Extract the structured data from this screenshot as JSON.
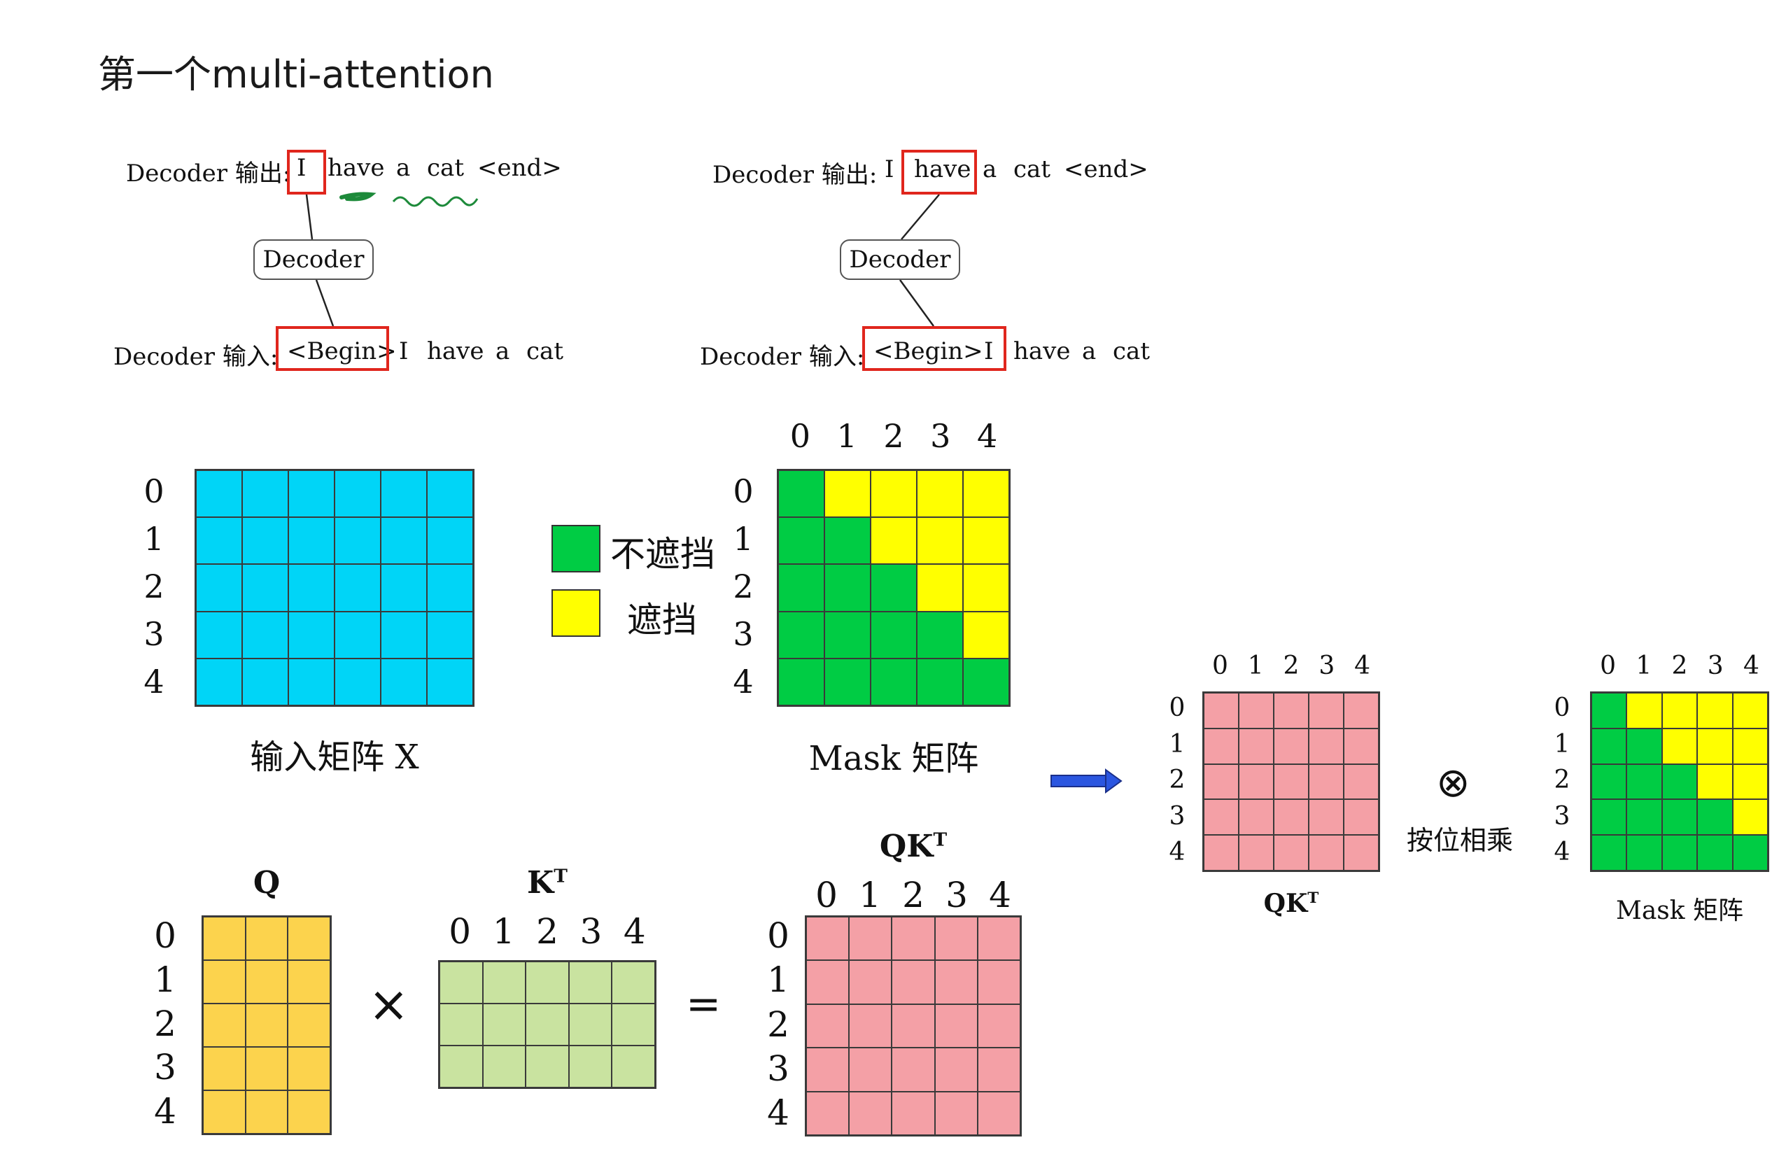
{
  "title": "第一个multi-attention",
  "decoder_left": {
    "output_label": "Decoder 输出:",
    "output_tokens": [
      "I",
      "have",
      "a",
      "cat",
      "<end>"
    ],
    "box_label": "Decoder",
    "input_label": "Decoder 输入:",
    "input_tokens": [
      "<Begin>",
      "I",
      "have",
      "a",
      "cat"
    ]
  },
  "decoder_right": {
    "output_label": "Decoder 输出:",
    "output_tokens": [
      "I",
      "have",
      "a",
      "cat",
      "<end>"
    ],
    "box_label": "Decoder",
    "input_label": "Decoder 输入:",
    "input_tokens": [
      "<Begin>",
      "I",
      "have",
      "a",
      "cat"
    ]
  },
  "input_matrix": {
    "caption": "输入矩阵 X",
    "rows": 5,
    "cols": 6,
    "row_labels": [
      "0",
      "1",
      "2",
      "3",
      "4"
    ],
    "color": "#00d5f7"
  },
  "legend": {
    "unmasked_label": "不遮挡",
    "masked_label": "遮挡",
    "unmasked_color": "#00cc44",
    "masked_color": "#ffff00"
  },
  "mask_matrix": {
    "caption": "Mask 矩阵",
    "col_labels": [
      "0",
      "1",
      "2",
      "3",
      "4"
    ],
    "row_labels": [
      "0",
      "1",
      "2",
      "3",
      "4"
    ],
    "green": "#00cc44",
    "yellow": "#ffff00"
  },
  "q_matrix": {
    "label": "Q",
    "rows": 5,
    "cols": 3,
    "row_labels": [
      "0",
      "1",
      "2",
      "3",
      "4"
    ],
    "color": "#fcd34d"
  },
  "kt_matrix": {
    "label": "K",
    "sup": "T",
    "col_labels": [
      "0",
      "1",
      "2",
      "3",
      "4"
    ],
    "rows": 3,
    "cols": 5,
    "color": "#c9e3a0"
  },
  "times_symbol": "×",
  "equals_symbol": "=",
  "qkt_matrix": {
    "label": "QK",
    "sup": "T",
    "col_labels": [
      "0",
      "1",
      "2",
      "3",
      "4"
    ],
    "row_labels": [
      "0",
      "1",
      "2",
      "3",
      "4"
    ],
    "color": "#f4a0a6"
  },
  "right_qkt": {
    "label": "QK",
    "sup": "T",
    "col_labels": [
      "0",
      "1",
      "2",
      "3",
      "4"
    ],
    "row_labels": [
      "0",
      "1",
      "2",
      "3",
      "4"
    ],
    "color": "#f4a0a6"
  },
  "otimes_symbol": "⊗",
  "otimes_caption": "按位相乘",
  "right_mask": {
    "caption": "Mask 矩阵",
    "col_labels": [
      "0",
      "1",
      "2",
      "3",
      "4"
    ],
    "row_labels": [
      "0",
      "1",
      "2",
      "3",
      "4"
    ]
  },
  "arrow_color": "#2b56e0"
}
